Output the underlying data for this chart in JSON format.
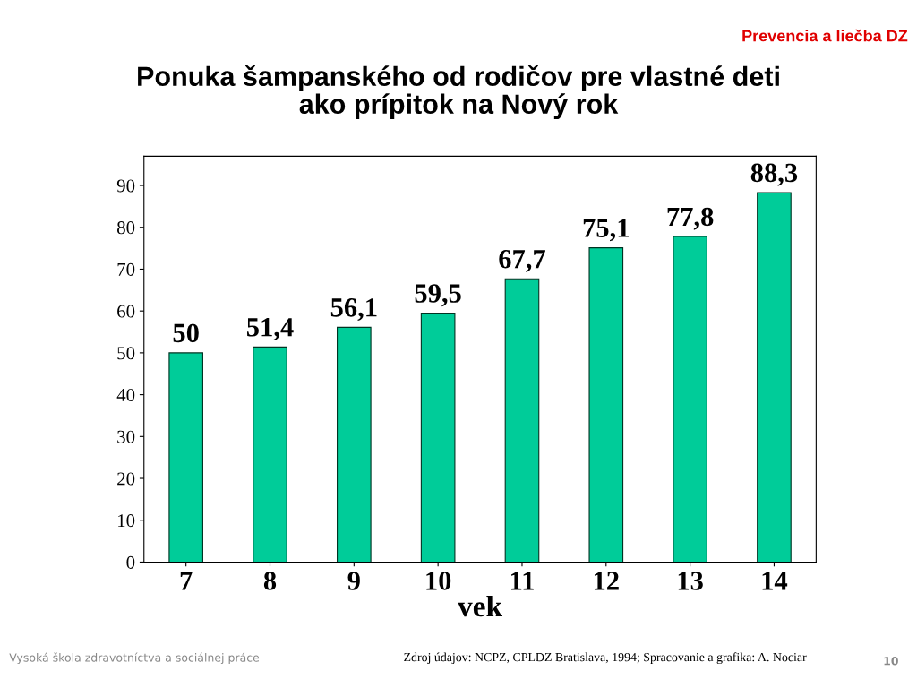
{
  "chart_data": {
    "type": "bar",
    "title": "Ponuka šampanského od rodičov pre vlastné deti\nako prípitok na Nový rok",
    "categories": [
      "7",
      "8",
      "9",
      "10",
      "11",
      "12",
      "13",
      "14"
    ],
    "values": [
      50,
      51.4,
      56.1,
      59.5,
      67.7,
      75.1,
      77.8,
      88.3
    ],
    "value_labels": [
      "50",
      "51,4",
      "56,1",
      "59,5",
      "67,7",
      "75,1",
      "77,8",
      "88,3"
    ],
    "color": "#00cc99",
    "xlabel": "vek",
    "ylim": [
      0,
      97
    ],
    "yticks": [
      0,
      10,
      20,
      30,
      40,
      50,
      60,
      70,
      80,
      90
    ],
    "grid": false,
    "legend": false,
    "annotations": [
      "Prevencia a liečba DZ",
      "Zdroj údajov: NCPZ, CPLDZ Bratislava, 1994; Spracovanie a grafika: A. Nociar",
      "Vysoká škola zdravotníctva a sociálnej práce",
      "10"
    ]
  }
}
